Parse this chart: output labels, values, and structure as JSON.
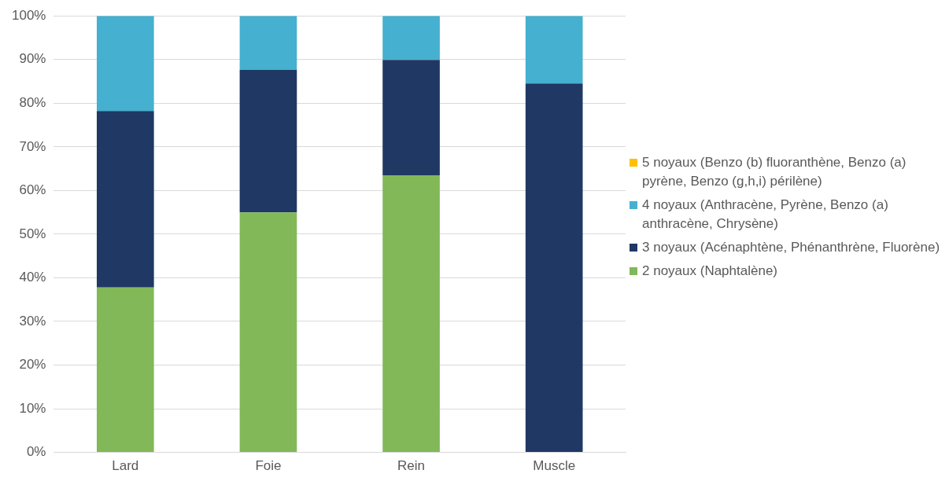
{
  "chart_data": {
    "type": "bar",
    "stacked": true,
    "categories": [
      "Lard",
      "Foie",
      "Rein",
      "Muscle"
    ],
    "series": [
      {
        "name": "2 noyaux (Naphtalène)",
        "color": "#82b858",
        "values": [
          37.8,
          55.0,
          63.5,
          0
        ]
      },
      {
        "name": "3 noyaux (Acénaphtène, Phénanthrène, Fluorène)",
        "color": "#1f3864",
        "values": [
          40.4,
          32.6,
          26.4,
          84.5
        ]
      },
      {
        "name": "4 noyaux (Anthracène, Pyrène, Benzo (a) anthracène, Chrysène)",
        "color": "#45b0cf",
        "values": [
          21.8,
          12.4,
          10.1,
          15.5
        ]
      },
      {
        "name": "5 noyaux (Benzo (b) fluoranthène, Benzo (a) pyrène, Benzo (g,h,i) périlène)",
        "color": "#ffc000",
        "values": [
          0,
          0,
          0,
          0
        ]
      }
    ],
    "ylim": [
      0,
      100
    ],
    "yticks": [
      {
        "value": 0,
        "label": "0%"
      },
      {
        "value": 10,
        "label": "10%"
      },
      {
        "value": 20,
        "label": "20%"
      },
      {
        "value": 30,
        "label": "30%"
      },
      {
        "value": 40,
        "label": "40%"
      },
      {
        "value": 50,
        "label": "50%"
      },
      {
        "value": 60,
        "label": "60%"
      },
      {
        "value": 70,
        "label": "70%"
      },
      {
        "value": 80,
        "label": "80%"
      },
      {
        "value": 90,
        "label": "90%"
      },
      {
        "value": 100,
        "label": "100%"
      }
    ],
    "grid": "y",
    "legend": "right"
  }
}
